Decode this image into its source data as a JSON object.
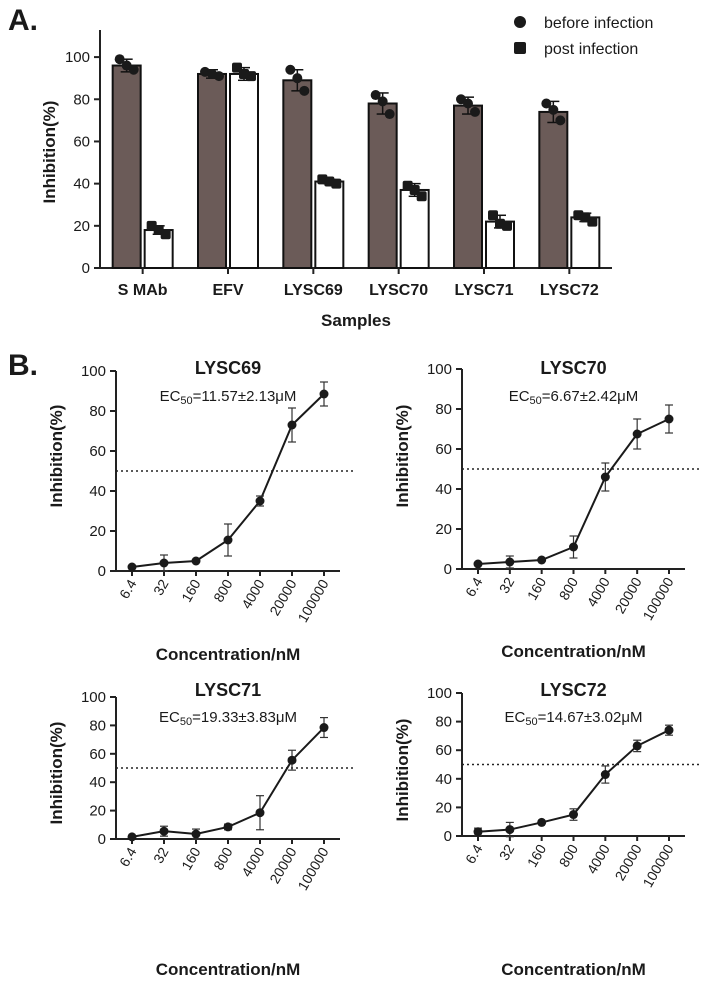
{
  "panels": {
    "a_label": "A.",
    "b_label": "B."
  },
  "bar_chart": {
    "ylabel": "Inhibition(%)",
    "xlabel": "Samples",
    "legend": [
      "before infection",
      "post infection"
    ]
  },
  "chart_data": [
    {
      "type": "bar",
      "xlabel": "Samples",
      "ylabel": "Inhibition(%)",
      "ylim": [
        0,
        110
      ],
      "yticks": [
        0,
        20,
        40,
        60,
        80,
        100
      ],
      "legend_position": "top-right",
      "categories": [
        "S MAb",
        "EFV",
        "LYSC69",
        "LYSC70",
        "LYSC71",
        "LYSC72"
      ],
      "series": [
        {
          "name": "before infection",
          "fill": "#6b5b58",
          "values": [
            96,
            92,
            89,
            78,
            77,
            74
          ],
          "error": [
            3,
            2,
            5,
            5,
            4,
            5
          ],
          "points": [
            [
              99,
              96,
              94
            ],
            [
              93,
              92,
              91
            ],
            [
              94,
              90,
              84
            ],
            [
              82,
              79,
              73
            ],
            [
              80,
              78,
              74
            ],
            [
              78,
              75,
              70
            ]
          ]
        },
        {
          "name": "post infection",
          "fill": "#ffffff",
          "values": [
            18,
            92,
            41,
            37,
            22,
            24
          ],
          "error": [
            2,
            3,
            1,
            3,
            3,
            2
          ],
          "points": [
            [
              20,
              18,
              16
            ],
            [
              95,
              92,
              91
            ],
            [
              42,
              41,
              40
            ],
            [
              39,
              37,
              34
            ],
            [
              25,
              21,
              20
            ],
            [
              25,
              24,
              22
            ]
          ]
        }
      ]
    },
    {
      "type": "line",
      "title": "LYSC69",
      "ec50_prefix": "EC",
      "ec50_sub": "50",
      "ec50_value": "=11.57±2.13μM",
      "xlabel": "Concentration/nM",
      "ylabel": "Inhibition(%)",
      "x": [
        "6.4",
        "32",
        "160",
        "800",
        "4000",
        "20000",
        "100000"
      ],
      "values": [
        2,
        4,
        5,
        15.5,
        35,
        73,
        88.5
      ],
      "error": [
        0,
        4,
        0.5,
        8,
        2.5,
        8.5,
        6
      ],
      "ylim": [
        0,
        100
      ],
      "yticks": [
        0,
        20,
        40,
        60,
        80,
        100
      ],
      "threshold": 50
    },
    {
      "type": "line",
      "title": "LYSC70",
      "ec50_prefix": "EC",
      "ec50_sub": "50",
      "ec50_value": "=6.67±2.42μM",
      "xlabel": "Concentration/nM",
      "ylabel": "Inhibition(%)",
      "x": [
        "6.4",
        "32",
        "160",
        "800",
        "4000",
        "20000",
        "100000"
      ],
      "values": [
        2.5,
        3.5,
        4.5,
        11,
        46,
        67.5,
        75
      ],
      "error": [
        0,
        3,
        0.5,
        5.5,
        7,
        7.5,
        7
      ],
      "ylim": [
        0,
        100
      ],
      "yticks": [
        0,
        20,
        40,
        60,
        80,
        100
      ],
      "threshold": 50
    },
    {
      "type": "line",
      "title": "LYSC71",
      "ec50_prefix": "EC",
      "ec50_sub": "50",
      "ec50_value": "=19.33±3.83μM",
      "xlabel": "Concentration/nM",
      "ylabel": "Inhibition(%)",
      "x": [
        "6.4",
        "32",
        "160",
        "800",
        "4000",
        "20000",
        "100000"
      ],
      "values": [
        1.5,
        5.5,
        3.5,
        8.5,
        18.5,
        55.5,
        78.5
      ],
      "error": [
        0,
        3.5,
        3.5,
        2,
        12,
        7,
        7
      ],
      "ylim": [
        0,
        100
      ],
      "yticks": [
        0,
        20,
        40,
        60,
        80,
        100
      ],
      "threshold": 50
    },
    {
      "type": "line",
      "title": "LYSC72",
      "ec50_prefix": "EC",
      "ec50_sub": "50",
      "ec50_value": "=14.67±3.02μM",
      "xlabel": "Concentration/nM",
      "ylabel": "Inhibition(%)",
      "x": [
        "6.4",
        "32",
        "160",
        "800",
        "4000",
        "20000",
        "100000"
      ],
      "values": [
        3,
        4.5,
        9.5,
        15,
        43,
        63,
        74
      ],
      "error": [
        2.5,
        5,
        0.5,
        4,
        6,
        4,
        3.5
      ],
      "ylim": [
        0,
        100
      ],
      "yticks": [
        0,
        20,
        40,
        60,
        80,
        100
      ],
      "threshold": 50
    }
  ]
}
